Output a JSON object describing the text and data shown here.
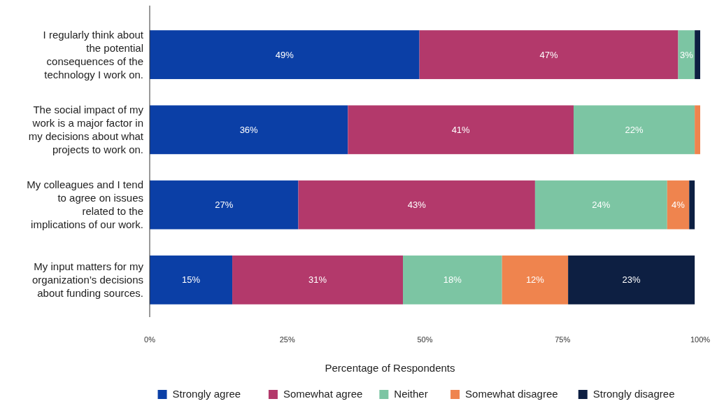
{
  "chart_data": {
    "type": "bar",
    "orientation": "horizontal",
    "stacked": true,
    "xlabel": "Percentage of Respondents",
    "categories": [
      "I regularly think about the potential consequences of the technology I work on.",
      "The social impact of my work is a major factor in my decisions about what projects to work on.",
      "My colleagues and I tend to agree on issues related to the implications of our work.",
      "My input matters for my organization’s decisions about funding sources."
    ],
    "xlim": [
      0,
      100
    ],
    "xticks": [
      {
        "value": 0,
        "label": "0%"
      },
      {
        "value": 25,
        "label": "25%"
      },
      {
        "value": 50,
        "label": "50%"
      },
      {
        "value": 75,
        "label": "75%"
      },
      {
        "value": 100,
        "label": "100%"
      }
    ],
    "grid": false,
    "legend": "bottom",
    "series": [
      {
        "name": "Strongly agree",
        "color": "#0b3fa6",
        "values": [
          49,
          36,
          27,
          15
        ],
        "value_labels": [
          "49%",
          "36%",
          "27%",
          "15%"
        ]
      },
      {
        "name": "Somewhat agree",
        "color": "#b3396b",
        "values": [
          47,
          41,
          43,
          31
        ],
        "value_labels": [
          "47%",
          "41%",
          "43%",
          "31%"
        ]
      },
      {
        "name": "Neither",
        "color": "#7cc5a3",
        "values": [
          3,
          22,
          24,
          18
        ],
        "value_labels": [
          "3%",
          "22%",
          "24%",
          "18%"
        ]
      },
      {
        "name": "Somewhat disagree",
        "color": "#ef844e",
        "values": [
          0,
          1,
          4,
          12
        ],
        "value_labels": [
          null,
          null,
          "4%",
          "12%"
        ]
      },
      {
        "name": "Strongly disagree",
        "color": "#0d1f42",
        "values": [
          1,
          0,
          1,
          23
        ],
        "value_labels": [
          null,
          null,
          null,
          "23%"
        ]
      }
    ]
  }
}
